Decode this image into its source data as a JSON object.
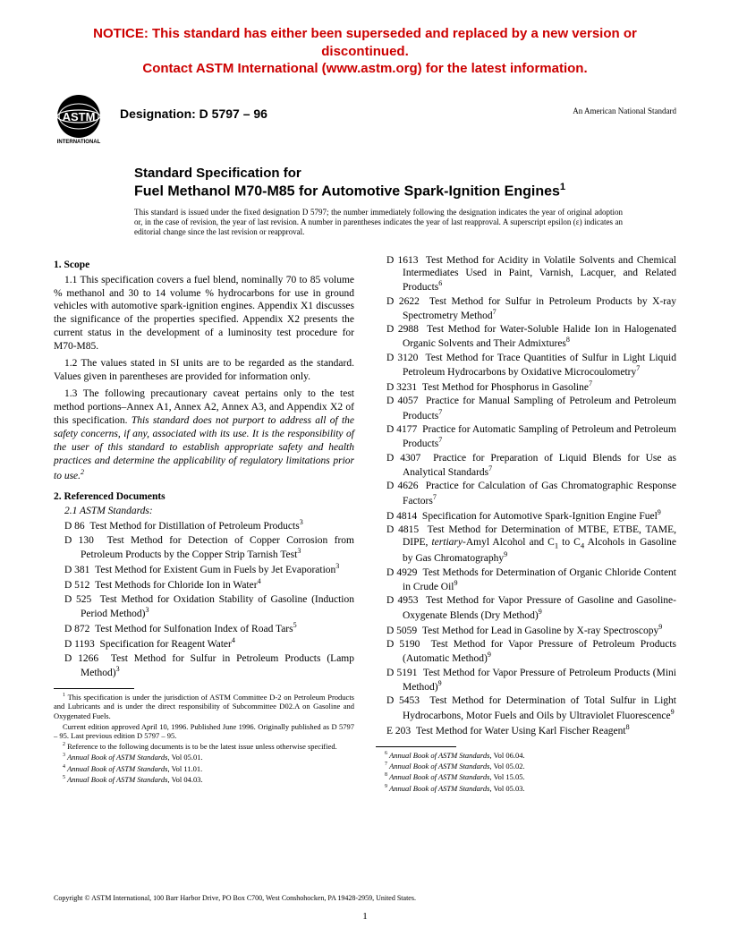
{
  "notice": {
    "line1": "NOTICE: This standard has either been superseded and replaced by a new version or discontinued.",
    "line2": "Contact ASTM International (www.astm.org) for the latest information."
  },
  "logo_text": "ASTM",
  "logo_sub": "INTERNATIONAL",
  "designation": "Designation: D 5797 – 96",
  "ansi_note": "An American National Standard",
  "title": {
    "line1": "Standard Specification for",
    "line2": "Fuel Methanol M70-M85 for Automotive Spark-Ignition Engines",
    "sup": "1"
  },
  "issuance": "This standard is issued under the fixed designation D 5797; the number immediately following the designation indicates the year of original adoption or, in the case of revision, the year of last revision. A number in parentheses indicates the year of last reapproval. A superscript epsilon (ε) indicates an editorial change since the last revision or reapproval.",
  "scope_head": "1. Scope",
  "scope": {
    "p11": "1.1 This specification covers a fuel blend, nominally 70 to 85 volume % methanol and 30 to 14 volume % hydrocarbons for use in ground vehicles with automotive spark-ignition engines. Appendix X1 discusses the significance of the properties specified. Appendix X2 presents the current status in the development of a luminosity test procedure for M70-M85.",
    "p12": "1.2 The values stated in SI units are to be regarded as the standard. Values given in parentheses are provided for information only.",
    "p13a": "1.3 The following precautionary caveat pertains only to the test method portions–Annex A1, Annex A2, Annex A3, and Appendix X2 of this specification. ",
    "p13b": "This standard does not purport to address all of the safety concerns, if any, associated with its use. It is the responsibility of the user of this standard to establish appropriate safety and health practices and determine the applicability of regulatory limitations prior to use.",
    "p13sup": "2"
  },
  "refs_head": "2. Referenced Documents",
  "refs_sub": "2.1 ASTM Standards:",
  "refs_left": [
    {
      "code": "D 86",
      "t": "Test Method for Distillation of Petroleum Products",
      "s": "3"
    },
    {
      "code": "D 130",
      "t": "Test Method for Detection of Copper Corrosion from Petroleum Products by the Copper Strip Tarnish Test",
      "s": "3"
    },
    {
      "code": "D 381",
      "t": "Test Method for Existent Gum in Fuels by Jet Evaporation",
      "s": "3"
    },
    {
      "code": "D 512",
      "t": "Test Methods for Chloride Ion in Water",
      "s": "4"
    },
    {
      "code": "D 525",
      "t": "Test Method for Oxidation Stability of Gasoline (Induction Period Method)",
      "s": "3"
    },
    {
      "code": "D 872",
      "t": "Test Method for Sulfonation Index of Road Tars",
      "s": "5"
    },
    {
      "code": "D 1193",
      "t": "Specification for Reagent Water",
      "s": "4"
    },
    {
      "code": "D 1266",
      "t": "Test Method for Sulfur in Petroleum Products (Lamp Method)",
      "s": "3"
    }
  ],
  "refs_right": [
    {
      "code": "D 1613",
      "t": "Test Method for Acidity in Volatile Solvents and Chemical Intermediates Used in Paint, Varnish, Lacquer, and Related Products",
      "s": "6"
    },
    {
      "code": "D 2622",
      "t": "Test Method for Sulfur in Petroleum Products by X-ray Spectrometry Method",
      "s": "7"
    },
    {
      "code": "D 2988",
      "t": "Test Method for Water-Soluble Halide Ion in Halogenated Organic Solvents and Their Admixtures",
      "s": "8"
    },
    {
      "code": "D 3120",
      "t": "Test Method for Trace Quantities of Sulfur in Light Liquid Petroleum Hydrocarbons by Oxidative Microcoulometry",
      "s": "7"
    },
    {
      "code": "D 3231",
      "t": "Test Method for Phosphorus in Gasoline",
      "s": "7"
    },
    {
      "code": "D 4057",
      "t": "Practice for Manual Sampling of Petroleum and Petroleum Products",
      "s": "7"
    },
    {
      "code": "D 4177",
      "t": "Practice for Automatic Sampling of Petroleum and Petroleum Products",
      "s": "7"
    },
    {
      "code": "D 4307",
      "t": "Practice for Preparation of Liquid Blends for Use as Analytical Standards",
      "s": "7"
    },
    {
      "code": "D 4626",
      "t": "Practice for Calculation of Gas Chromatographic Response Factors",
      "s": "7"
    },
    {
      "code": "D 4814",
      "t": "Specification for Automotive Spark-Ignition Engine Fuel",
      "s": "9"
    }
  ],
  "d4815": {
    "code": "D 4815",
    "pre": "Test Method for Determination of MTBE, ETBE, TAME, DIPE, ",
    "ital": "tertiary",
    "post": "-Amyl Alcohol and C",
    "sub1": "1",
    "mid": " to C",
    "sub2": "4",
    "end": " Alcohols in Gasoline by Gas Chromatography",
    "s": "9"
  },
  "refs_right2": [
    {
      "code": "D 4929",
      "t": "Test Methods for Determination of Organic Chloride Content in Crude Oil",
      "s": "9"
    },
    {
      "code": "D 4953",
      "t": "Test Method for Vapor Pressure of Gasoline and Gasoline-Oxygenate Blends (Dry Method)",
      "s": "9"
    },
    {
      "code": "D 5059",
      "t": "Test Method for Lead in Gasoline by X-ray Spectroscopy",
      "s": "9"
    },
    {
      "code": "D 5190",
      "t": "Test Method for Vapor Pressure of Petroleum Products (Automatic Method)",
      "s": "9"
    },
    {
      "code": "D 5191",
      "t": "Test Method for Vapor Pressure of Petroleum Products (Mini Method)",
      "s": "9"
    },
    {
      "code": "D 5453",
      "t": "Test Method for Determination of Total Sulfur in Light Hydrocarbons, Motor Fuels and Oils by Ultraviolet Fluorescence",
      "s": "9"
    },
    {
      "code": "E 203",
      "t": "Test Method for Water Using Karl Fischer Reagent",
      "s": "8"
    }
  ],
  "footnotes_left": [
    {
      "n": "1",
      "t": "This specification is under the jurisdiction of ASTM Committee D-2 on Petroleum Products and Lubricants and is under the direct responsibility of Subcommittee D02.A on Gasoline and Oxygenated Fuels."
    },
    {
      "n": "",
      "t": "Current edition approved April 10, 1996. Published June 1996. Originally published as D 5797 – 95. Last previous edition D 5797 – 95."
    },
    {
      "n": "2",
      "t": "Reference to the following documents is to be the latest issue unless otherwise specified."
    },
    {
      "n": "3",
      "t": "Annual Book of ASTM Standards, Vol 05.01.",
      "ital": true
    },
    {
      "n": "4",
      "t": "Annual Book of ASTM Standards, Vol 11.01.",
      "ital": true
    },
    {
      "n": "5",
      "t": "Annual Book of ASTM Standards, Vol 04.03.",
      "ital": true
    }
  ],
  "footnotes_right": [
    {
      "n": "6",
      "t": "Annual Book of ASTM Standards, Vol 06.04.",
      "ital": true
    },
    {
      "n": "7",
      "t": "Annual Book of ASTM Standards, Vol 05.02.",
      "ital": true
    },
    {
      "n": "8",
      "t": "Annual Book of ASTM Standards, Vol 15.05.",
      "ital": true
    },
    {
      "n": "9",
      "t": "Annual Book of ASTM Standards, Vol 05.03.",
      "ital": true
    }
  ],
  "copyright": "Copyright © ASTM International, 100 Barr Harbor Drive, PO Box C700, West Conshohocken, PA 19428-2959, United States.",
  "page_number": "1"
}
